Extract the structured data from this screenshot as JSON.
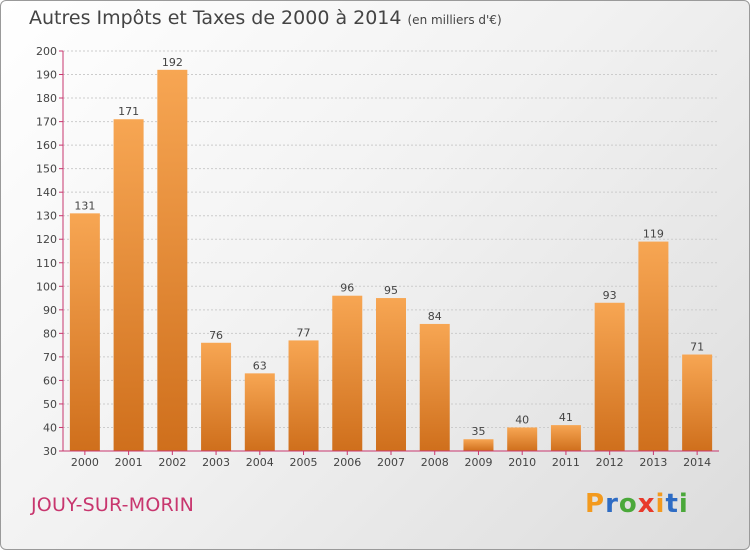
{
  "header": {
    "title": "Autres Impôts et Taxes de 2000 à 2014",
    "unit": "(en milliers d'€)"
  },
  "footer": {
    "commune": "JOUY-SUR-MORIN",
    "logo": [
      "P",
      "r",
      "o",
      "x",
      "i",
      "t",
      "i"
    ],
    "logo_colors": [
      "#f39a1e",
      "#2e6cc4",
      "#4aa83a",
      "#e8392b",
      "#f39a1e",
      "#2e6cc4",
      "#4aa83a"
    ]
  },
  "colors": {
    "bar_top": "#f7a653",
    "bar_bottom": "#cf6f1c",
    "axis": "#c8366e",
    "grid": "#cccccc",
    "text": "#444444"
  },
  "chart_data": {
    "type": "bar",
    "categories": [
      "2000",
      "2001",
      "2002",
      "2003",
      "2004",
      "2005",
      "2006",
      "2007",
      "2008",
      "2009",
      "2010",
      "2011",
      "2012",
      "2013",
      "2014"
    ],
    "values": [
      131,
      171,
      192,
      76,
      63,
      77,
      96,
      95,
      84,
      35,
      40,
      41,
      93,
      119,
      71
    ],
    "title": "Autres Impôts et Taxes de 2000 à 2014",
    "xlabel": "",
    "ylabel": "",
    "ylim": [
      30,
      200
    ],
    "yticks": [
      30,
      40,
      50,
      60,
      70,
      80,
      90,
      100,
      110,
      120,
      130,
      140,
      150,
      160,
      170,
      180,
      190,
      200
    ],
    "grid": true,
    "data_labels": true
  }
}
